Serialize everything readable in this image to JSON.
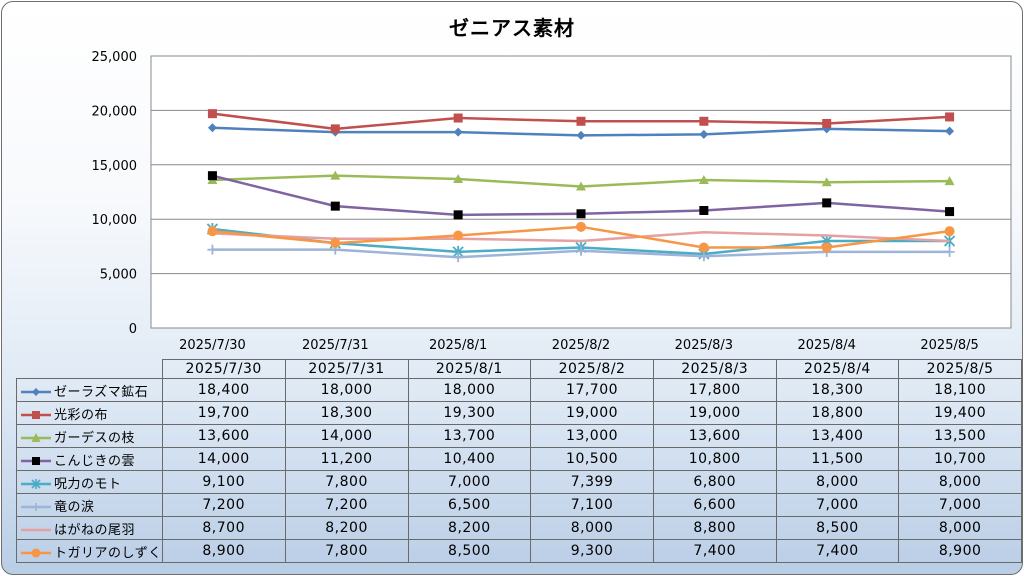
{
  "chart_data": {
    "type": "line",
    "title": "ゼニアス素材",
    "categories": [
      "2025/7/30",
      "2025/7/31",
      "2025/8/1",
      "2025/8/2",
      "2025/8/3",
      "2025/8/4",
      "2025/8/5"
    ],
    "ylim": [
      0,
      25000
    ],
    "yticks": [
      "0",
      "5,000",
      "10,000",
      "15,000",
      "20,000",
      "25,000"
    ],
    "ytick_values": [
      0,
      5000,
      10000,
      15000,
      20000,
      25000
    ],
    "grid": true,
    "legend": "data-table",
    "series": [
      {
        "name": "ゼーラズマ鉱石",
        "color": "#4f81bd",
        "marker": "diamond",
        "values": [
          18400,
          18000,
          18000,
          17700,
          17800,
          18300,
          18100
        ],
        "labels": [
          "18,400",
          "18,000",
          "18,000",
          "17,700",
          "17,800",
          "18,300",
          "18,100"
        ]
      },
      {
        "name": "光彩の布",
        "color": "#c0504d",
        "marker": "square",
        "values": [
          19700,
          18300,
          19300,
          19000,
          19000,
          18800,
          19400
        ],
        "labels": [
          "19,700",
          "18,300",
          "19,300",
          "19,000",
          "19,000",
          "18,800",
          "19,400"
        ]
      },
      {
        "name": "ガーデスの枝",
        "color": "#9bbb59",
        "marker": "triangle",
        "values": [
          13600,
          14000,
          13700,
          13000,
          13600,
          13400,
          13500
        ],
        "labels": [
          "13,600",
          "14,000",
          "13,700",
          "13,000",
          "13,600",
          "13,400",
          "13,500"
        ]
      },
      {
        "name": "こんじきの雲",
        "color": "#8064a2",
        "marker": "square-black",
        "values": [
          14000,
          11200,
          10400,
          10500,
          10800,
          11500,
          10700
        ],
        "labels": [
          "14,000",
          "11,200",
          "10,400",
          "10,500",
          "10,800",
          "11,500",
          "10,700"
        ]
      },
      {
        "name": "呪力のモト",
        "color": "#4bacc6",
        "marker": "star",
        "values": [
          9100,
          7800,
          7000,
          7399,
          6800,
          8000,
          8000
        ],
        "labels": [
          "9,100",
          "7,800",
          "7,000",
          "7,399",
          "6,800",
          "8,000",
          "8,000"
        ]
      },
      {
        "name": "竜の涙",
        "color": "#9db3d8",
        "marker": "plus",
        "values": [
          7200,
          7200,
          6500,
          7100,
          6600,
          7000,
          7000
        ],
        "labels": [
          "7,200",
          "7,200",
          "6,500",
          "7,100",
          "6,600",
          "7,000",
          "7,000"
        ]
      },
      {
        "name": "はがねの尾羽",
        "color": "#e6a0a0",
        "marker": "none",
        "values": [
          8700,
          8200,
          8200,
          8000,
          8800,
          8500,
          8000
        ],
        "labels": [
          "8,700",
          "8,200",
          "8,200",
          "8,000",
          "8,800",
          "8,500",
          "8,000"
        ]
      },
      {
        "name": "トガリアのしずく",
        "color": "#f79646",
        "marker": "circle",
        "values": [
          8900,
          7800,
          8500,
          9300,
          7400,
          7400,
          8900
        ],
        "labels": [
          "8,900",
          "7,800",
          "8,500",
          "9,300",
          "7,400",
          "7,400",
          "8,900"
        ]
      }
    ]
  }
}
